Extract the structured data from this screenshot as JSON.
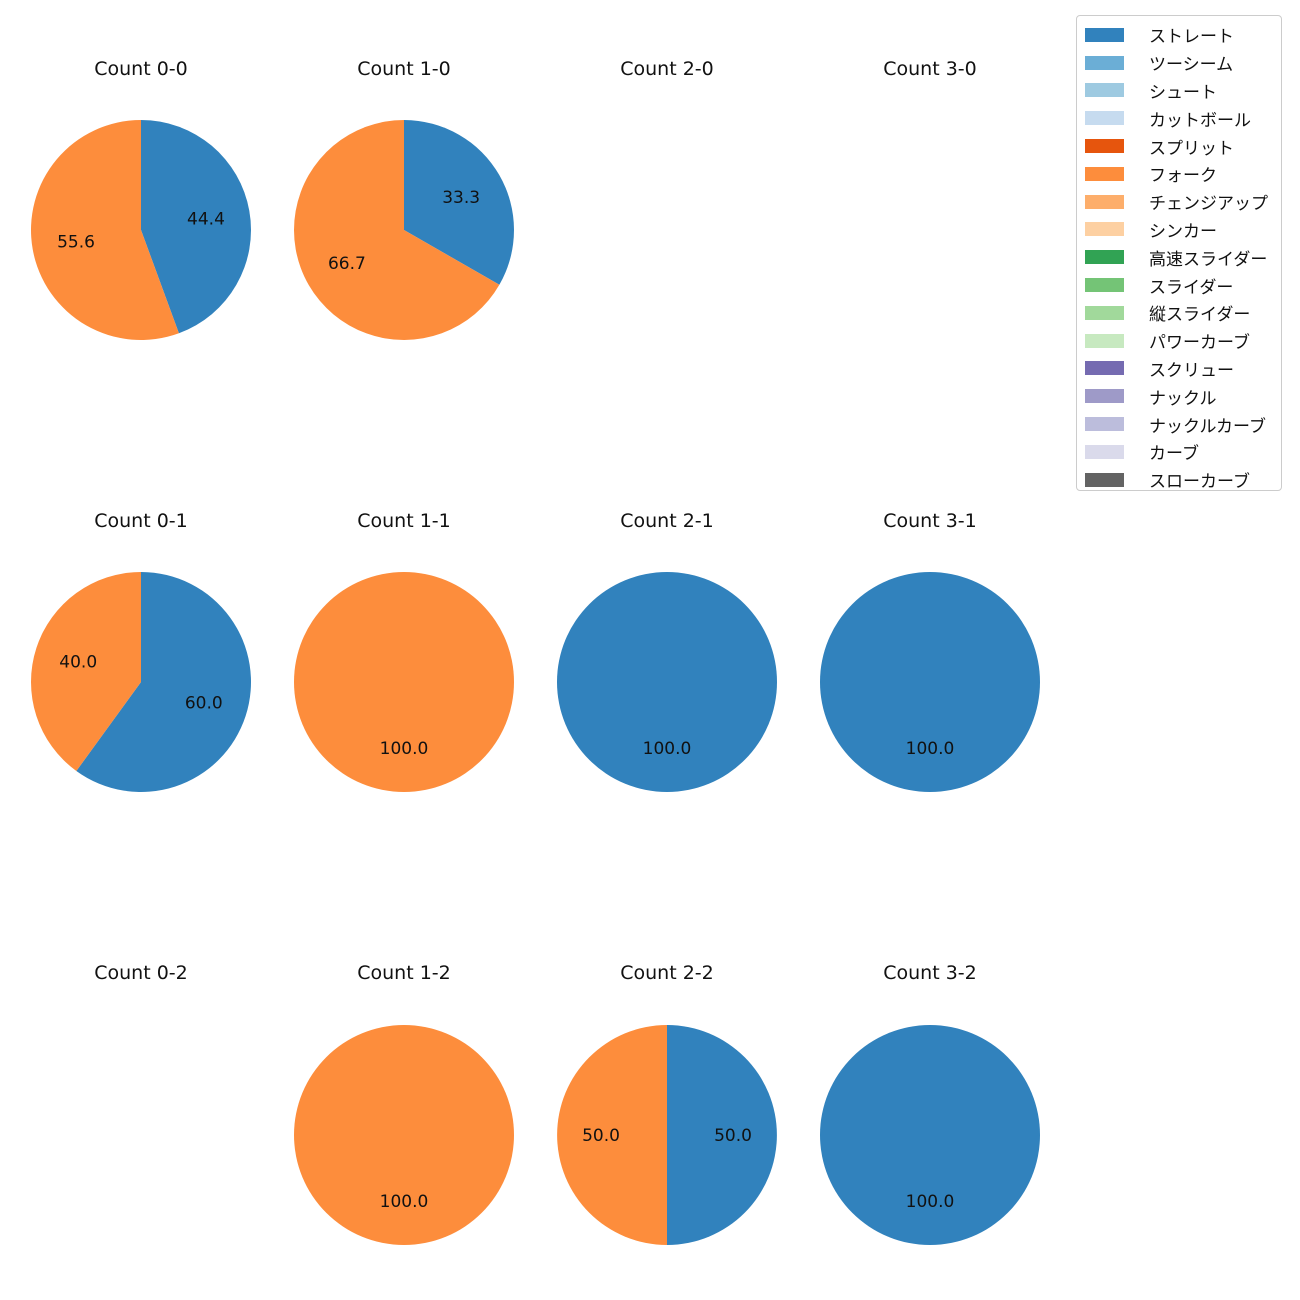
{
  "chart_data": {
    "type": "pie",
    "legend_placement": "top-right",
    "legend": [
      {
        "name": "ストレート",
        "color": "#3182bd"
      },
      {
        "name": "ツーシーム",
        "color": "#6baed6"
      },
      {
        "name": "シュート",
        "color": "#9ecae1"
      },
      {
        "name": "カットボール",
        "color": "#c6dbef"
      },
      {
        "name": "スプリット",
        "color": "#e6550d"
      },
      {
        "name": "フォーク",
        "color": "#fd8d3c"
      },
      {
        "name": "チェンジアップ",
        "color": "#fdae6b"
      },
      {
        "name": "シンカー",
        "color": "#fdd0a2"
      },
      {
        "name": "高速スライダー",
        "color": "#31a354"
      },
      {
        "name": "スライダー",
        "color": "#74c476"
      },
      {
        "name": "縦スライダー",
        "color": "#a1d99b"
      },
      {
        "name": "パワーカーブ",
        "color": "#c7e9c0"
      },
      {
        "name": "スクリュー",
        "color": "#756bb1"
      },
      {
        "name": "ナックル",
        "color": "#9e9ac8"
      },
      {
        "name": "ナックルカーブ",
        "color": "#bcbddc"
      },
      {
        "name": "カーブ",
        "color": "#dadaeb"
      },
      {
        "name": "スローカーブ",
        "color": "#636363"
      }
    ],
    "pies": [
      {
        "title": "Count 0-0",
        "slices": [
          {
            "name": "ストレート",
            "value": 44.4
          },
          {
            "name": "フォーク",
            "value": 55.6
          }
        ]
      },
      {
        "title": "Count 1-0",
        "slices": [
          {
            "name": "ストレート",
            "value": 33.3
          },
          {
            "name": "フォーク",
            "value": 66.7
          }
        ]
      },
      {
        "title": "Count 2-0",
        "slices": []
      },
      {
        "title": "Count 3-0",
        "slices": []
      },
      {
        "title": "Count 0-1",
        "slices": [
          {
            "name": "ストレート",
            "value": 60.0
          },
          {
            "name": "フォーク",
            "value": 40.0
          }
        ]
      },
      {
        "title": "Count 1-1",
        "slices": [
          {
            "name": "フォーク",
            "value": 100.0
          }
        ]
      },
      {
        "title": "Count 2-1",
        "slices": [
          {
            "name": "ストレート",
            "value": 100.0
          }
        ]
      },
      {
        "title": "Count 3-1",
        "slices": [
          {
            "name": "ストレート",
            "value": 100.0
          }
        ]
      },
      {
        "title": "Count 0-2",
        "slices": []
      },
      {
        "title": "Count 1-2",
        "slices": [
          {
            "name": "フォーク",
            "value": 100.0
          }
        ]
      },
      {
        "title": "Count 2-2",
        "slices": [
          {
            "name": "ストレート",
            "value": 50.0
          },
          {
            "name": "フォーク",
            "value": 50.0
          }
        ]
      },
      {
        "title": "Count 3-2",
        "slices": [
          {
            "name": "ストレート",
            "value": 100.0
          }
        ]
      }
    ]
  }
}
